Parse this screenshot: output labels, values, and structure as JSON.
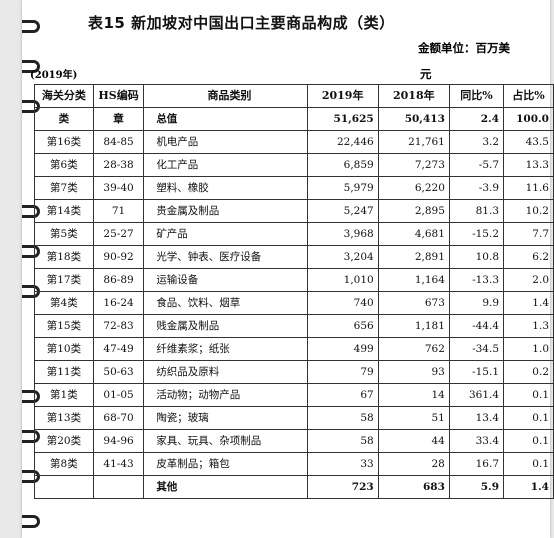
{
  "title": "表15 新加坡对中国出口主要商品构成（类）",
  "unit_line1": "金额单位：百万美",
  "unit_line2": "元",
  "year_note": "(2019年)",
  "header_row1": [
    "海关分类",
    "HS编码",
    "商品类别",
    "2019年",
    "2018年",
    "同比%",
    "占比%"
  ],
  "header_row2": {
    "cat": "类",
    "hs": "章",
    "name": "总值",
    "v2019": "51,625",
    "v2018": "50,413",
    "yoy": "2.4",
    "share": "100.0"
  },
  "rows": [
    {
      "cat": "第16类",
      "hs": "84-85",
      "name": "机电产品",
      "v2019": "22,446",
      "v2018": "21,761",
      "yoy": "3.2",
      "share": "43.5"
    },
    {
      "cat": "第6类",
      "hs": "28-38",
      "name": "化工产品",
      "v2019": "6,859",
      "v2018": "7,273",
      "yoy": "-5.7",
      "share": "13.3"
    },
    {
      "cat": "第7类",
      "hs": "39-40",
      "name": "塑料、橡胶",
      "v2019": "5,979",
      "v2018": "6,220",
      "yoy": "-3.9",
      "share": "11.6"
    },
    {
      "cat": "第14类",
      "hs": "71",
      "name": "贵金属及制品",
      "v2019": "5,247",
      "v2018": "2,895",
      "yoy": "81.3",
      "share": "10.2"
    },
    {
      "cat": "第5类",
      "hs": "25-27",
      "name": "矿产品",
      "v2019": "3,968",
      "v2018": "4,681",
      "yoy": "-15.2",
      "share": "7.7"
    },
    {
      "cat": "第18类",
      "hs": "90-92",
      "name": "光学、钟表、医疗设备",
      "v2019": "3,204",
      "v2018": "2,891",
      "yoy": "10.8",
      "share": "6.2"
    },
    {
      "cat": "第17类",
      "hs": "86-89",
      "name": "运输设备",
      "v2019": "1,010",
      "v2018": "1,164",
      "yoy": "-13.3",
      "share": "2.0"
    },
    {
      "cat": "第4类",
      "hs": "16-24",
      "name": "食品、饮料、烟草",
      "v2019": "740",
      "v2018": "673",
      "yoy": "9.9",
      "share": "1.4"
    },
    {
      "cat": "第15类",
      "hs": "72-83",
      "name": "贱金属及制品",
      "v2019": "656",
      "v2018": "1,181",
      "yoy": "-44.4",
      "share": "1.3"
    },
    {
      "cat": "第10类",
      "hs": "47-49",
      "name": "纤维素浆；纸张",
      "v2019": "499",
      "v2018": "762",
      "yoy": "-34.5",
      "share": "1.0"
    },
    {
      "cat": "第11类",
      "hs": "50-63",
      "name": "纺织品及原料",
      "v2019": "79",
      "v2018": "93",
      "yoy": "-15.1",
      "share": "0.2"
    },
    {
      "cat": "第1类",
      "hs": "01-05",
      "name": "活动物；动物产品",
      "v2019": "67",
      "v2018": "14",
      "yoy": "361.4",
      "share": "0.1"
    },
    {
      "cat": "第13类",
      "hs": "68-70",
      "name": "陶瓷；玻璃",
      "v2019": "58",
      "v2018": "51",
      "yoy": "13.4",
      "share": "0.1"
    },
    {
      "cat": "第20类",
      "hs": "94-96",
      "name": "家具、玩具、杂项制品",
      "v2019": "58",
      "v2018": "44",
      "yoy": "33.4",
      "share": "0.1"
    },
    {
      "cat": "第8类",
      "hs": "41-43",
      "name": "皮革制品；箱包",
      "v2019": "33",
      "v2018": "28",
      "yoy": "16.7",
      "share": "0.1"
    }
  ],
  "footer": {
    "cat": "",
    "hs": "",
    "name": "其他",
    "v2019": "723",
    "v2018": "683",
    "yoy": "5.9",
    "share": "1.4"
  }
}
